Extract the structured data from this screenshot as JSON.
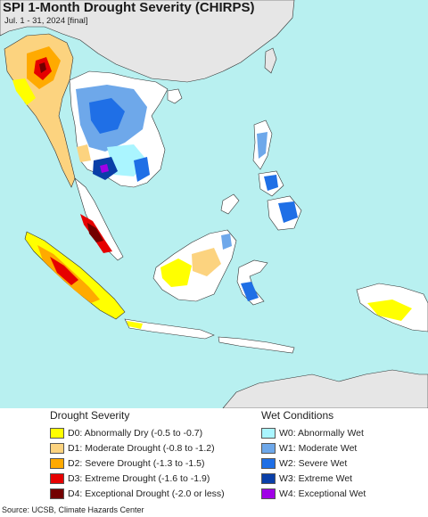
{
  "header": {
    "title": "SPI 1-Month Drought Severity (CHIRPS)",
    "subtitle": "Jul. 1 - 31, 2024 [final]"
  },
  "legend": {
    "drought_title": "Drought Severity",
    "wet_title": "Wet Conditions",
    "drought": [
      {
        "label": "D0: Abnormally Dry (-0.5 to -0.7)",
        "color": "#ffff00"
      },
      {
        "label": "D1: Moderate Drought (-0.8 to -1.2)",
        "color": "#fcd37f"
      },
      {
        "label": "D2: Severe Drought (-1.3 to -1.5)",
        "color": "#ffaa00"
      },
      {
        "label": "D3: Extreme Drought (-1.6 to -1.9)",
        "color": "#e60000"
      },
      {
        "label": "D4: Exceptional Drought (-2.0 or less)",
        "color": "#730000"
      }
    ],
    "wet": [
      {
        "label": "W0: Abnormally Wet",
        "color": "#aaf5ff"
      },
      {
        "label": "W1: Moderate Wet",
        "color": "#6ea8ea"
      },
      {
        "label": "W2: Severe Wet",
        "color": "#1f6fe6"
      },
      {
        "label": "W3: Extreme Wet",
        "color": "#0a3fa8"
      },
      {
        "label": "W4: Exceptional Wet",
        "color": "#a000e6"
      }
    ]
  },
  "map": {
    "ocean_color": "#b8f0f0",
    "land_color": "#ffffff",
    "no_data_color": "#e6e6e6"
  },
  "footer": {
    "source": "Source: UCSB, Climate Hazards Center"
  }
}
